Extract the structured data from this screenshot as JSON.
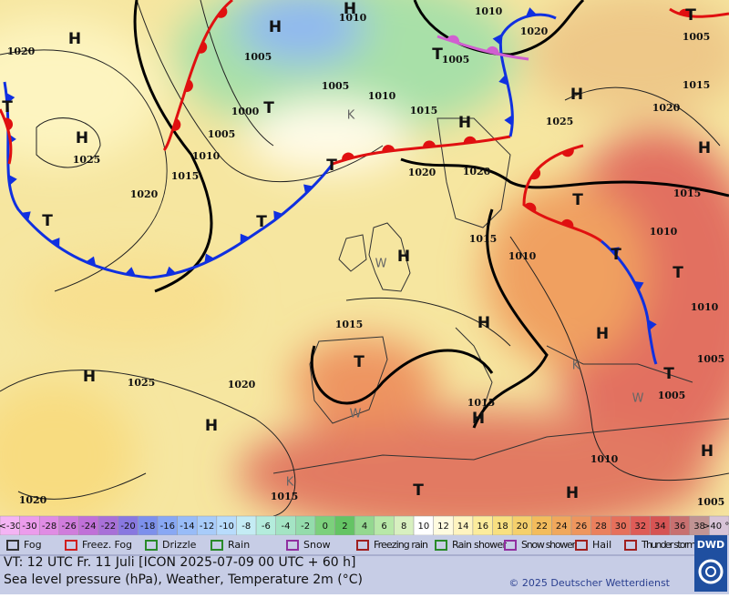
{
  "map": {
    "centers": [
      "H",
      "H",
      "H",
      "H",
      "H",
      "H",
      "H",
      "H",
      "H",
      "H",
      "H",
      "H",
      "H",
      "H",
      "H",
      "T",
      "T",
      "T",
      "T",
      "T",
      "T",
      "T",
      "T",
      "T",
      "T",
      "T",
      "T",
      "T"
    ],
    "isobar_labels": [
      "1010",
      "1020",
      "1005",
      "1005",
      "1010",
      "1000",
      "1005",
      "1010",
      "1015",
      "1020",
      "1025",
      "1015",
      "1020",
      "1020",
      "1025",
      "1020",
      "1015",
      "1005",
      "1020",
      "1005",
      "1010",
      "1015",
      "1010",
      "1015",
      "1010",
      "1010",
      "1005",
      "1005",
      "1015",
      "1015",
      "1025",
      "1020",
      "1010",
      "1015",
      "1020",
      "1005"
    ],
    "region_letters": [
      "W",
      "K",
      "W",
      "W",
      "K",
      "K"
    ]
  },
  "scale": [
    {
      "label": "<-30",
      "color": "#f4b4f4"
    },
    {
      "label": "-30",
      "color": "#ec9cec"
    },
    {
      "label": "-28",
      "color": "#e08ce4"
    },
    {
      "label": "-26",
      "color": "#d07cdc"
    },
    {
      "label": "-24",
      "color": "#c070d8"
    },
    {
      "label": "-22",
      "color": "#a870d8"
    },
    {
      "label": "-20",
      "color": "#8878e0"
    },
    {
      "label": "-18",
      "color": "#7c90ec"
    },
    {
      "label": "-16",
      "color": "#88a8f4"
    },
    {
      "label": "-14",
      "color": "#98bcf8"
    },
    {
      "label": "-12",
      "color": "#a8ccfa"
    },
    {
      "label": "-10",
      "color": "#b8dcfc"
    },
    {
      "label": "-8",
      "color": "#c4ecf4"
    },
    {
      "label": "-6",
      "color": "#b4ecdc"
    },
    {
      "label": "-4",
      "color": "#a4e4c4"
    },
    {
      "label": "-2",
      "color": "#94dcac"
    },
    {
      "label": "0",
      "color": "#7cd07c"
    },
    {
      "label": "2",
      "color": "#64c464"
    },
    {
      "label": "4",
      "color": "#94d890"
    },
    {
      "label": "6",
      "color": "#b8e8a8"
    },
    {
      "label": "8",
      "color": "#d8f0c0"
    },
    {
      "label": "10",
      "color": "#ffffff"
    },
    {
      "label": "12",
      "color": "#fffbe0"
    },
    {
      "label": "14",
      "color": "#fff4c0"
    },
    {
      "label": "16",
      "color": "#fcec9c"
    },
    {
      "label": "18",
      "color": "#f8e080"
    },
    {
      "label": "20",
      "color": "#f5d06c"
    },
    {
      "label": "22",
      "color": "#f3bc5c"
    },
    {
      "label": "24",
      "color": "#f0a85c"
    },
    {
      "label": "26",
      "color": "#ee965e"
    },
    {
      "label": "28",
      "color": "#ea805e"
    },
    {
      "label": "30",
      "color": "#e6705c"
    },
    {
      "label": "32",
      "color": "#de5c58"
    },
    {
      "label": "34",
      "color": "#d65454"
    },
    {
      "label": "36",
      "color": "#c87070"
    },
    {
      "label": "38",
      "color": "#c09494"
    },
    {
      "label": ">40 °C",
      "color": "#d8c4d8"
    }
  ],
  "legend": [
    "Fog",
    "Freez. Fog",
    "Drizzle",
    "Rain",
    "Snow",
    "Freezing rain",
    "Rain shower",
    "Snow shower",
    "Hail",
    "Thunder storm"
  ],
  "footer": {
    "valid_time": "VT: 12 UTC Fr.  11 Juli [ICON 2025-07-09  00 UTC + 60 h]",
    "description": "Sea level pressure (hPa), Weather, Temperature 2m (°C)",
    "copyright": "© 2025 Deutscher Wetterdienst",
    "logo": "DWD"
  }
}
